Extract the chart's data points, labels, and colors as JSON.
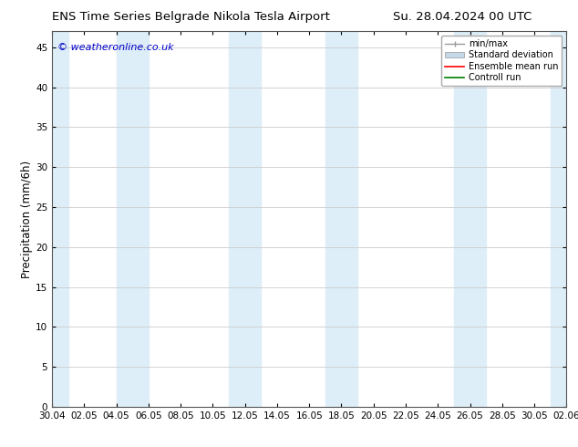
{
  "title": "ENS Time Series Belgrade Nikola Tesla Airport",
  "title_right": "Su. 28.04.2024 00 UTC",
  "ylabel": "Precipitation (mm/6h)",
  "watermark": "© weatheronline.co.uk",
  "background_color": "#ffffff",
  "plot_bg_color": "#ffffff",
  "ylim": [
    0,
    47
  ],
  "yticks": [
    0,
    5,
    10,
    15,
    20,
    25,
    30,
    35,
    40,
    45
  ],
  "x_labels": [
    "30.04",
    "02.05",
    "04.05",
    "06.05",
    "08.05",
    "10.05",
    "12.05",
    "14.05",
    "16.05",
    "18.05",
    "20.05",
    "22.05",
    "24.05",
    "26.05",
    "28.05",
    "30.05",
    "02.06"
  ],
  "shade_color": "#ddeef8",
  "grid_color": "#cccccc",
  "legend_items": [
    {
      "label": "min/max",
      "color": "#aaaaaa"
    },
    {
      "label": "Standard deviation",
      "color": "#c5d8e8"
    },
    {
      "label": "Ensemble mean run",
      "color": "#ff0000"
    },
    {
      "label": "Controll run",
      "color": "#008000"
    }
  ],
  "title_fontsize": 9.5,
  "label_fontsize": 8.5,
  "tick_fontsize": 7.5,
  "watermark_color": "#0000cc",
  "n_x_points": 32,
  "x_tick_positions": [
    0,
    2,
    4,
    6,
    8,
    10,
    12,
    14,
    16,
    18,
    20,
    22,
    24,
    26,
    28,
    30,
    32
  ],
  "shaded_regions": [
    [
      0.0,
      1.0
    ],
    [
      4.0,
      6.0
    ],
    [
      11.0,
      13.0
    ],
    [
      17.0,
      19.0
    ],
    [
      25.0,
      27.0
    ],
    [
      31.0,
      32.0
    ]
  ]
}
